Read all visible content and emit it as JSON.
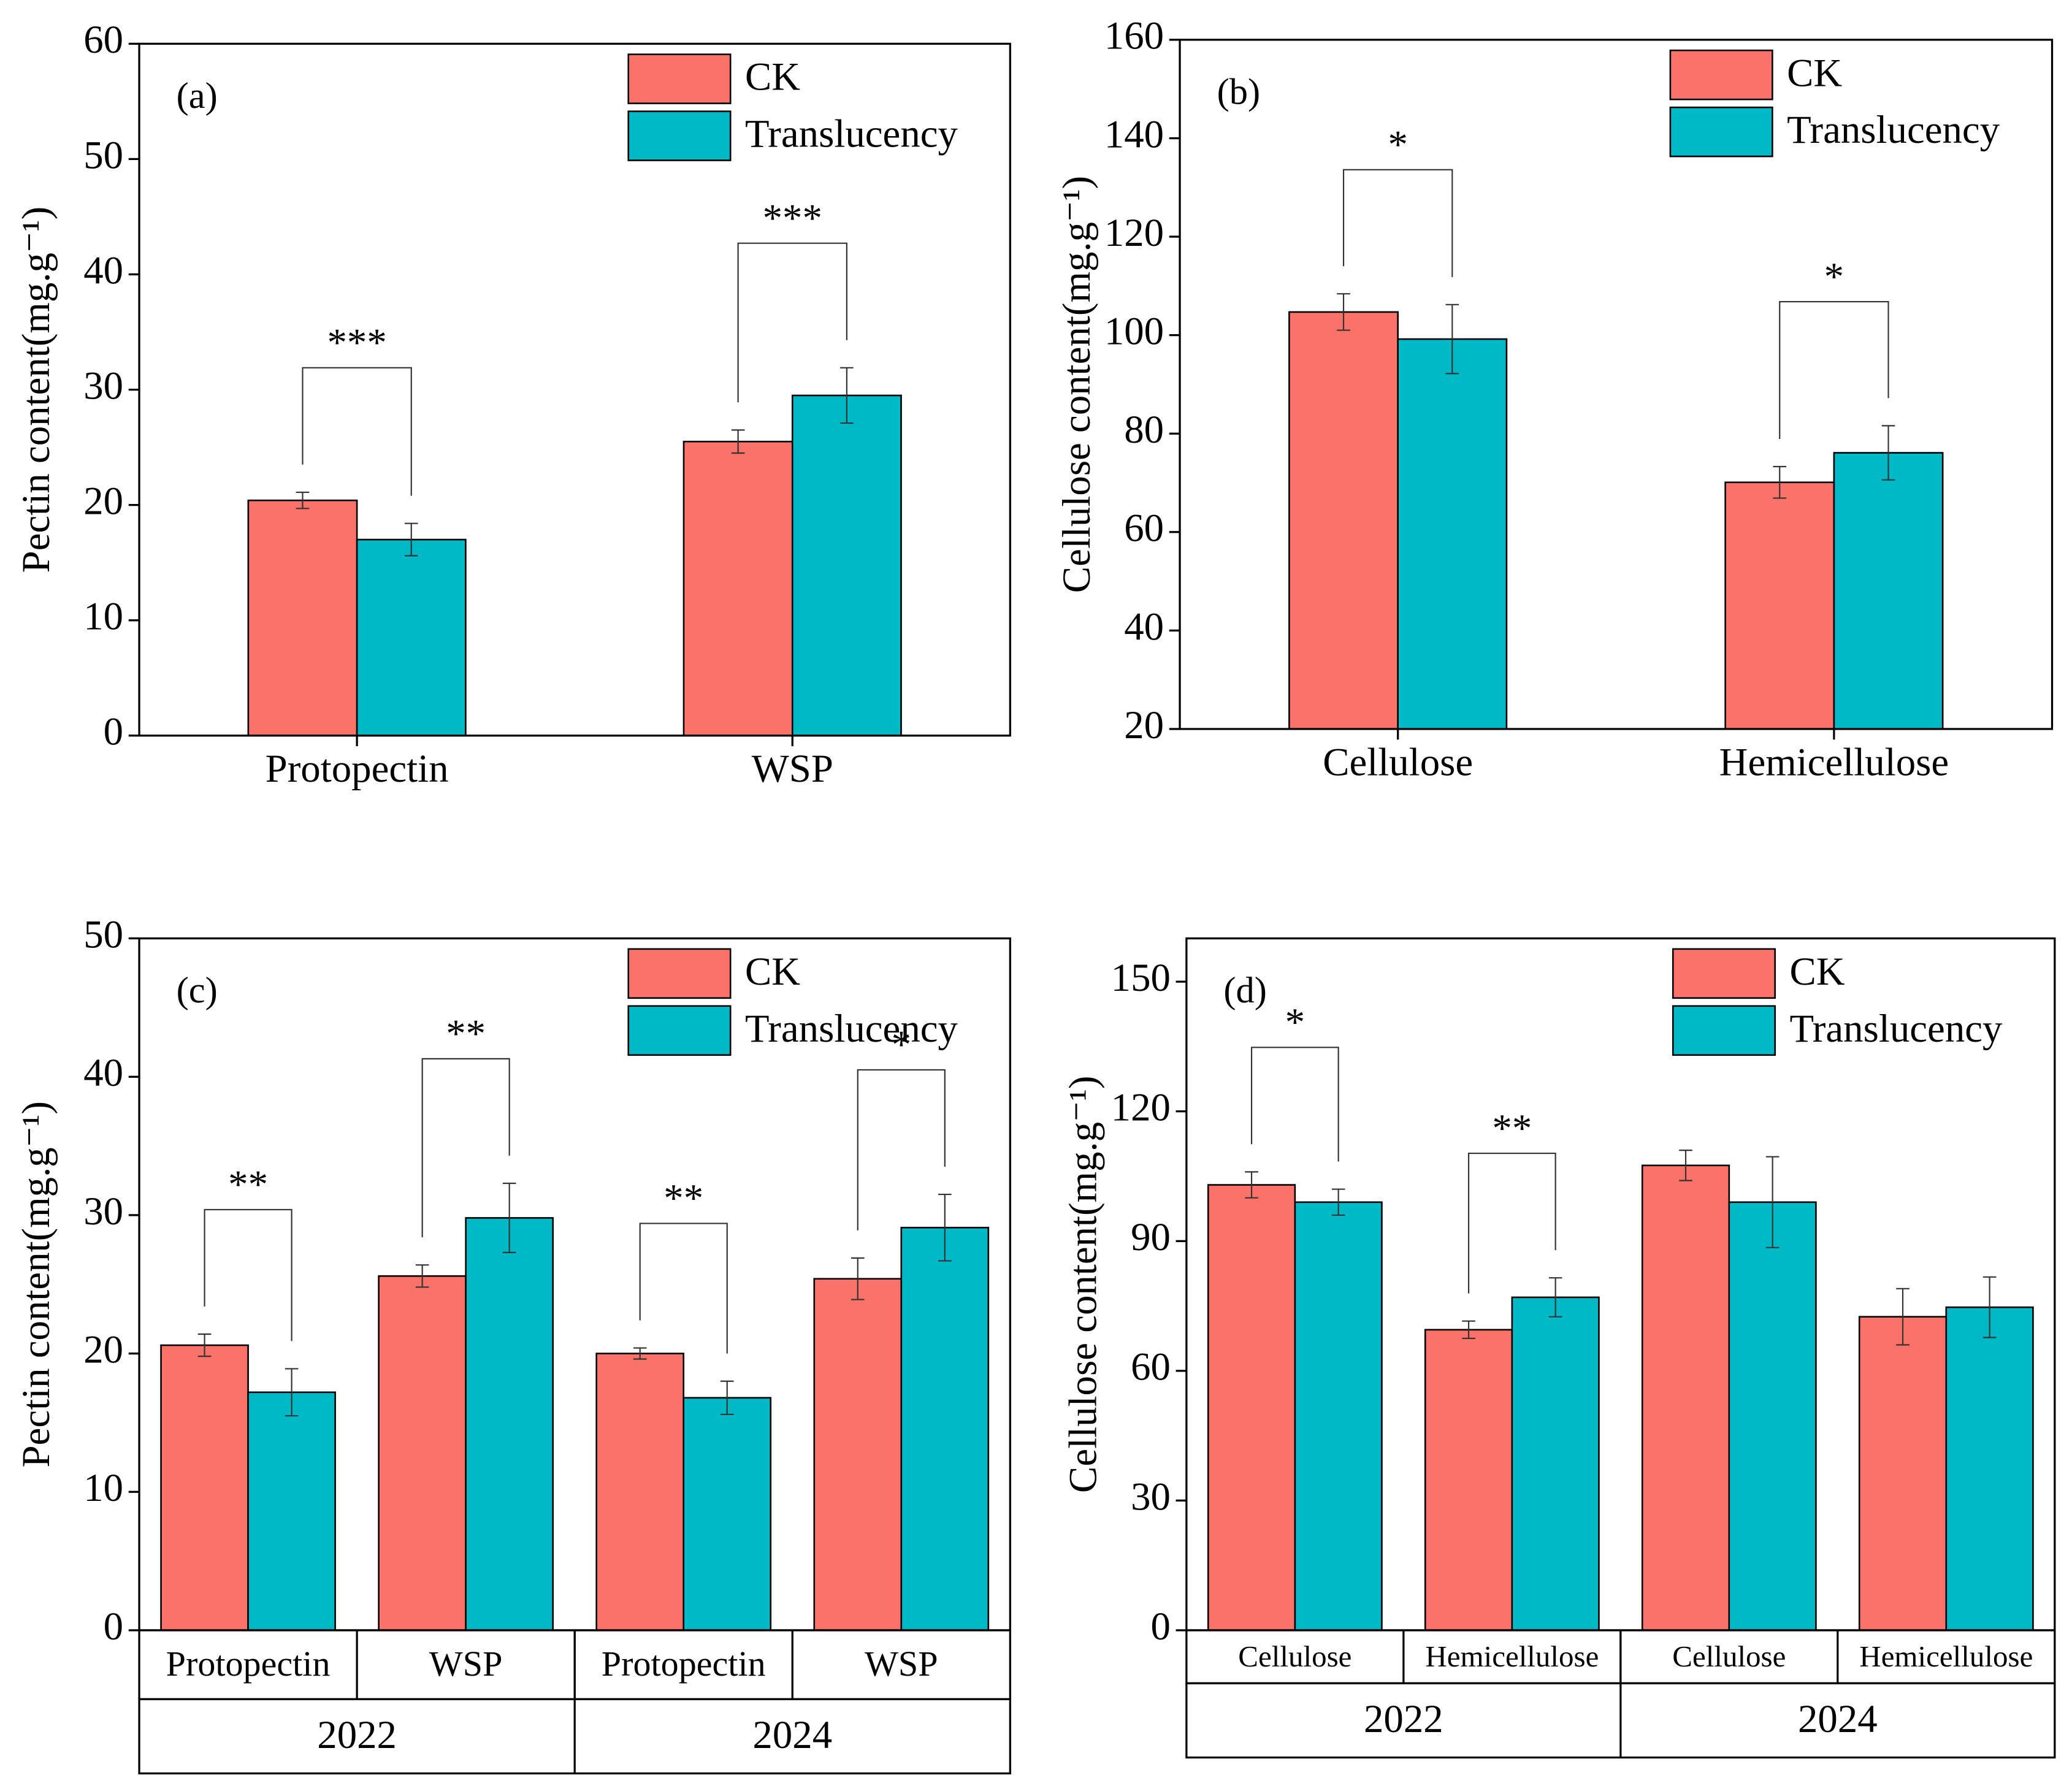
{
  "chart_data": [
    {
      "type": "bar",
      "panel_label": "(a)",
      "ylabel": "Pectin content(mg.g⁻¹)",
      "categories": [
        "Protopectin",
        "WSP"
      ],
      "series": [
        {
          "name": "CK",
          "color": "#fa7268",
          "values": [
            20.4,
            25.5
          ],
          "errors": [
            0.7,
            1.0
          ]
        },
        {
          "name": "Translucency",
          "color": "#00b9c7",
          "values": [
            17.0,
            29.5
          ],
          "errors": [
            1.4,
            2.4
          ]
        }
      ],
      "significance": [
        "***",
        "***"
      ],
      "ylim": [
        0,
        60
      ],
      "yticks": [
        0,
        10,
        20,
        30,
        40,
        50,
        60
      ],
      "legend": "upper right"
    },
    {
      "type": "bar",
      "panel_label": "(b)",
      "ylabel": "Cellulose content(mg.g⁻¹)",
      "categories": [
        "Cellulose",
        "Hemicellulose"
      ],
      "series": [
        {
          "name": "CK",
          "color": "#fa7268",
          "values": [
            104.7,
            70.1
          ],
          "errors": [
            3.7,
            3.2
          ]
        },
        {
          "name": "Translucency",
          "color": "#00b9c7",
          "values": [
            99.2,
            76.1
          ],
          "errors": [
            7.0,
            5.5
          ]
        }
      ],
      "significance": [
        "*",
        "*"
      ],
      "ylim": [
        20,
        160
      ],
      "yticks": [
        20,
        40,
        60,
        80,
        100,
        120,
        140,
        160
      ],
      "legend": "upper right"
    },
    {
      "type": "bar",
      "panel_label": "(c)",
      "ylabel": "Pectin content(mg.g⁻¹)",
      "categories": [
        "Protopectin",
        "WSP",
        "Protopectin",
        "WSP"
      ],
      "groups": [
        "2022",
        "2024"
      ],
      "series": [
        {
          "name": "CK",
          "color": "#fa7268",
          "values": [
            20.6,
            25.6,
            20.0,
            25.4
          ],
          "errors": [
            0.8,
            0.8,
            0.4,
            1.5
          ]
        },
        {
          "name": "Translucency",
          "color": "#00b9c7",
          "values": [
            17.2,
            29.8,
            16.8,
            29.1
          ],
          "errors": [
            1.7,
            2.5,
            1.2,
            2.4
          ]
        }
      ],
      "significance": [
        "**",
        "**",
        "**",
        "*"
      ],
      "ylim": [
        0,
        50
      ],
      "yticks": [
        0,
        10,
        20,
        30,
        40,
        50
      ],
      "legend": "upper right"
    },
    {
      "type": "bar",
      "panel_label": "(d)",
      "ylabel": "Cellulose content(mg.g⁻¹)",
      "categories": [
        "Cellulose",
        "Hemicellulose",
        "Cellulose",
        "Hemicellulose"
      ],
      "groups": [
        "2022",
        "2024"
      ],
      "series": [
        {
          "name": "CK",
          "color": "#fa7268",
          "values": [
            103,
            69.5,
            107.5,
            72.5
          ],
          "errors": [
            3,
            2,
            3.5,
            6.5
          ]
        },
        {
          "name": "Translucency",
          "color": "#00b9c7",
          "values": [
            99,
            77,
            99,
            74.7
          ],
          "errors": [
            3,
            4.5,
            10.5,
            7
          ]
        }
      ],
      "significance": [
        "*",
        "**",
        null,
        null
      ],
      "ylim": [
        0,
        160
      ],
      "yticks": [
        0,
        30,
        60,
        90,
        120,
        150
      ],
      "legend": "upper right"
    }
  ]
}
